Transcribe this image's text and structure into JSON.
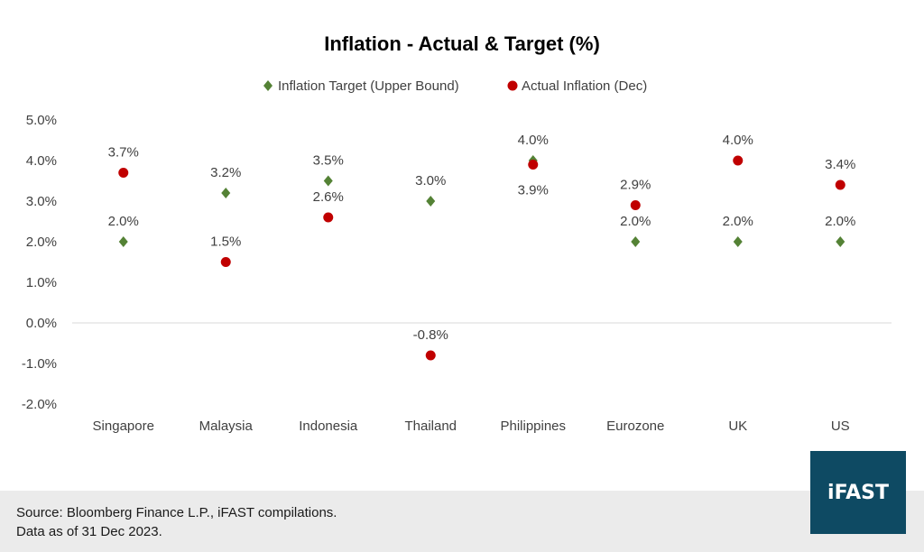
{
  "chart_data": {
    "type": "scatter",
    "title": "Inflation - Actual & Target (%)",
    "categories": [
      "Singapore",
      "Malaysia",
      "Indonesia",
      "Thailand",
      "Philippines",
      "Eurozone",
      "UK",
      "US"
    ],
    "ylim": [
      -2.0,
      5.0
    ],
    "yticks": [
      "5.0%",
      "4.0%",
      "3.0%",
      "2.0%",
      "1.0%",
      "0.0%",
      "-1.0%",
      "-2.0%"
    ],
    "ytick_values": [
      5,
      4,
      3,
      2,
      1,
      0,
      -1,
      -2
    ],
    "grid": false,
    "legend_position": "top",
    "series": [
      {
        "name": "Inflation Target (Upper Bound)",
        "marker": "diamond",
        "color": "#548235",
        "values": [
          2.0,
          3.2,
          3.5,
          3.0,
          4.0,
          2.0,
          2.0,
          2.0
        ],
        "labels": [
          "2.0%",
          "3.2%",
          "3.5%",
          "3.0%",
          "4.0%",
          "2.0%",
          "2.0%",
          "2.0%"
        ]
      },
      {
        "name": "Actual Inflation (Dec)",
        "marker": "circle",
        "color": "#c00000",
        "values": [
          3.7,
          1.5,
          2.6,
          -0.8,
          3.9,
          2.9,
          4.0,
          3.4
        ],
        "labels": [
          "3.7%",
          "1.5%",
          "2.6%",
          "-0.8%",
          "3.9%",
          "2.9%",
          "4.0%",
          "3.4%"
        ]
      }
    ]
  },
  "footer": {
    "source": "Source: Bloomberg Finance L.P., iFAST compilations.",
    "date_note": "Data as of 31 Dec 2023."
  },
  "logo": {
    "text": "iFAST"
  }
}
